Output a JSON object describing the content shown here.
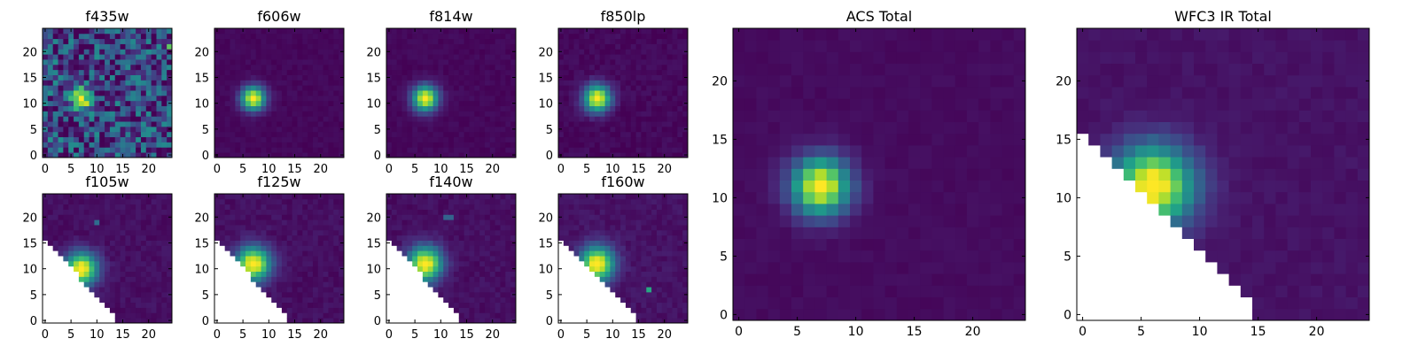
{
  "figure": {
    "colormap": "viridis",
    "colormap_stops": [
      "#440154",
      "#482878",
      "#3e4a89",
      "#31688e",
      "#26828e",
      "#1f9e89",
      "#35b779",
      "#6ece58",
      "#b5de2b",
      "#fde725"
    ]
  },
  "chart_data": [
    {
      "type": "heatmap",
      "title": "f435w",
      "grid_size": 25,
      "xlim": [
        0,
        24
      ],
      "ylim": [
        0,
        24
      ],
      "xticks": [
        0,
        5,
        10,
        15,
        20
      ],
      "yticks": [
        0,
        5,
        10,
        15,
        20
      ],
      "peak": [
        7,
        11
      ],
      "peak_width": 1.2,
      "background_level": 0.22,
      "noise_level": 0.28,
      "extra_sources": [
        {
          "x": 24,
          "y": 21,
          "value": 0.75
        }
      ],
      "masked_region": "none"
    },
    {
      "type": "heatmap",
      "title": "f606w",
      "grid_size": 25,
      "xlim": [
        0,
        24
      ],
      "ylim": [
        0,
        24
      ],
      "xticks": [
        0,
        5,
        10,
        15,
        20
      ],
      "yticks": [
        0,
        5,
        10,
        15,
        20
      ],
      "peak": [
        7,
        11
      ],
      "peak_width": 1.6,
      "background_level": 0.02,
      "noise_level": 0.02,
      "extra_sources": [],
      "masked_region": "none"
    },
    {
      "type": "heatmap",
      "title": "f814w",
      "grid_size": 25,
      "xlim": [
        0,
        24
      ],
      "ylim": [
        0,
        24
      ],
      "xticks": [
        0,
        5,
        10,
        15,
        20
      ],
      "yticks": [
        0,
        5,
        10,
        15,
        20
      ],
      "peak": [
        7,
        11
      ],
      "peak_width": 1.7,
      "background_level": 0.02,
      "noise_level": 0.02,
      "extra_sources": [],
      "masked_region": "none"
    },
    {
      "type": "heatmap",
      "title": "f850lp",
      "grid_size": 25,
      "xlim": [
        0,
        24
      ],
      "ylim": [
        0,
        24
      ],
      "xticks": [
        0,
        5,
        10,
        15,
        20
      ],
      "yticks": [
        0,
        5,
        10,
        15,
        20
      ],
      "peak": [
        7,
        11
      ],
      "peak_width": 1.8,
      "background_level": 0.02,
      "noise_level": 0.03,
      "extra_sources": [],
      "masked_region": "none"
    },
    {
      "type": "heatmap",
      "title": "f105w",
      "grid_size": 25,
      "xlim": [
        0,
        24
      ],
      "ylim": [
        0,
        24
      ],
      "xticks": [
        0,
        5,
        10,
        15,
        20
      ],
      "yticks": [
        0,
        5,
        10,
        15,
        20
      ],
      "peak": [
        7,
        10
      ],
      "peak_width": 2.2,
      "background_level": 0.04,
      "noise_level": 0.03,
      "extra_sources": [
        {
          "x": 10,
          "y": 19,
          "value": 0.35
        }
      ],
      "masked_region": "lower-left diagonal, from (0,16) to (14,0)"
    },
    {
      "type": "heatmap",
      "title": "f125w",
      "grid_size": 25,
      "xlim": [
        0,
        24
      ],
      "ylim": [
        0,
        24
      ],
      "xticks": [
        0,
        5,
        10,
        15,
        20
      ],
      "yticks": [
        0,
        5,
        10,
        15,
        20
      ],
      "peak": [
        7,
        11
      ],
      "peak_width": 2.3,
      "background_level": 0.04,
      "noise_level": 0.03,
      "extra_sources": [],
      "masked_region": "lower-left diagonal, from (0,16) to (14,0)"
    },
    {
      "type": "heatmap",
      "title": "f140w",
      "grid_size": 25,
      "xlim": [
        0,
        24
      ],
      "ylim": [
        0,
        24
      ],
      "xticks": [
        0,
        5,
        10,
        15,
        20
      ],
      "yticks": [
        0,
        5,
        10,
        15,
        20
      ],
      "peak": [
        7,
        11
      ],
      "peak_width": 2.3,
      "background_level": 0.04,
      "noise_level": 0.03,
      "extra_sources": [
        {
          "x": 11,
          "y": 20,
          "value": 0.32
        },
        {
          "x": 12,
          "y": 20,
          "value": 0.32
        }
      ],
      "masked_region": "lower-left diagonal, from (0,16) to (14,0)"
    },
    {
      "type": "heatmap",
      "title": "f160w",
      "grid_size": 25,
      "xlim": [
        0,
        24
      ],
      "ylim": [
        0,
        24
      ],
      "xticks": [
        0,
        5,
        10,
        15,
        20
      ],
      "yticks": [
        0,
        5,
        10,
        15,
        20
      ],
      "peak": [
        7,
        11
      ],
      "peak_width": 2.3,
      "background_level": 0.05,
      "noise_level": 0.03,
      "extra_sources": [
        {
          "x": 17,
          "y": 6,
          "value": 0.6
        }
      ],
      "masked_region": "lower-left diagonal, from (0,16) to (15,0)"
    },
    {
      "type": "heatmap",
      "title": "ACS Total",
      "grid_size": 25,
      "xlim": [
        0,
        24
      ],
      "ylim": [
        0,
        24
      ],
      "xticks": [
        0,
        5,
        10,
        15,
        20
      ],
      "yticks": [
        0,
        5,
        10,
        15,
        20
      ],
      "peak": [
        7,
        11
      ],
      "peak_width": 1.7,
      "background_level": 0.03,
      "noise_level": 0.015,
      "extra_sources": [],
      "masked_region": "none"
    },
    {
      "type": "heatmap",
      "title": "WFC3 IR Total",
      "grid_size": 25,
      "xlim": [
        0,
        24
      ],
      "ylim": [
        0,
        24
      ],
      "xticks": [
        0,
        5,
        10,
        15,
        20
      ],
      "yticks": [
        0,
        5,
        10,
        15,
        20
      ],
      "peak": [
        6,
        11
      ],
      "peak_width": 2.4,
      "background_level": 0.05,
      "noise_level": 0.02,
      "extra_sources": [],
      "masked_region": "lower-left diagonal, from (0,16) to (15,0)"
    }
  ]
}
